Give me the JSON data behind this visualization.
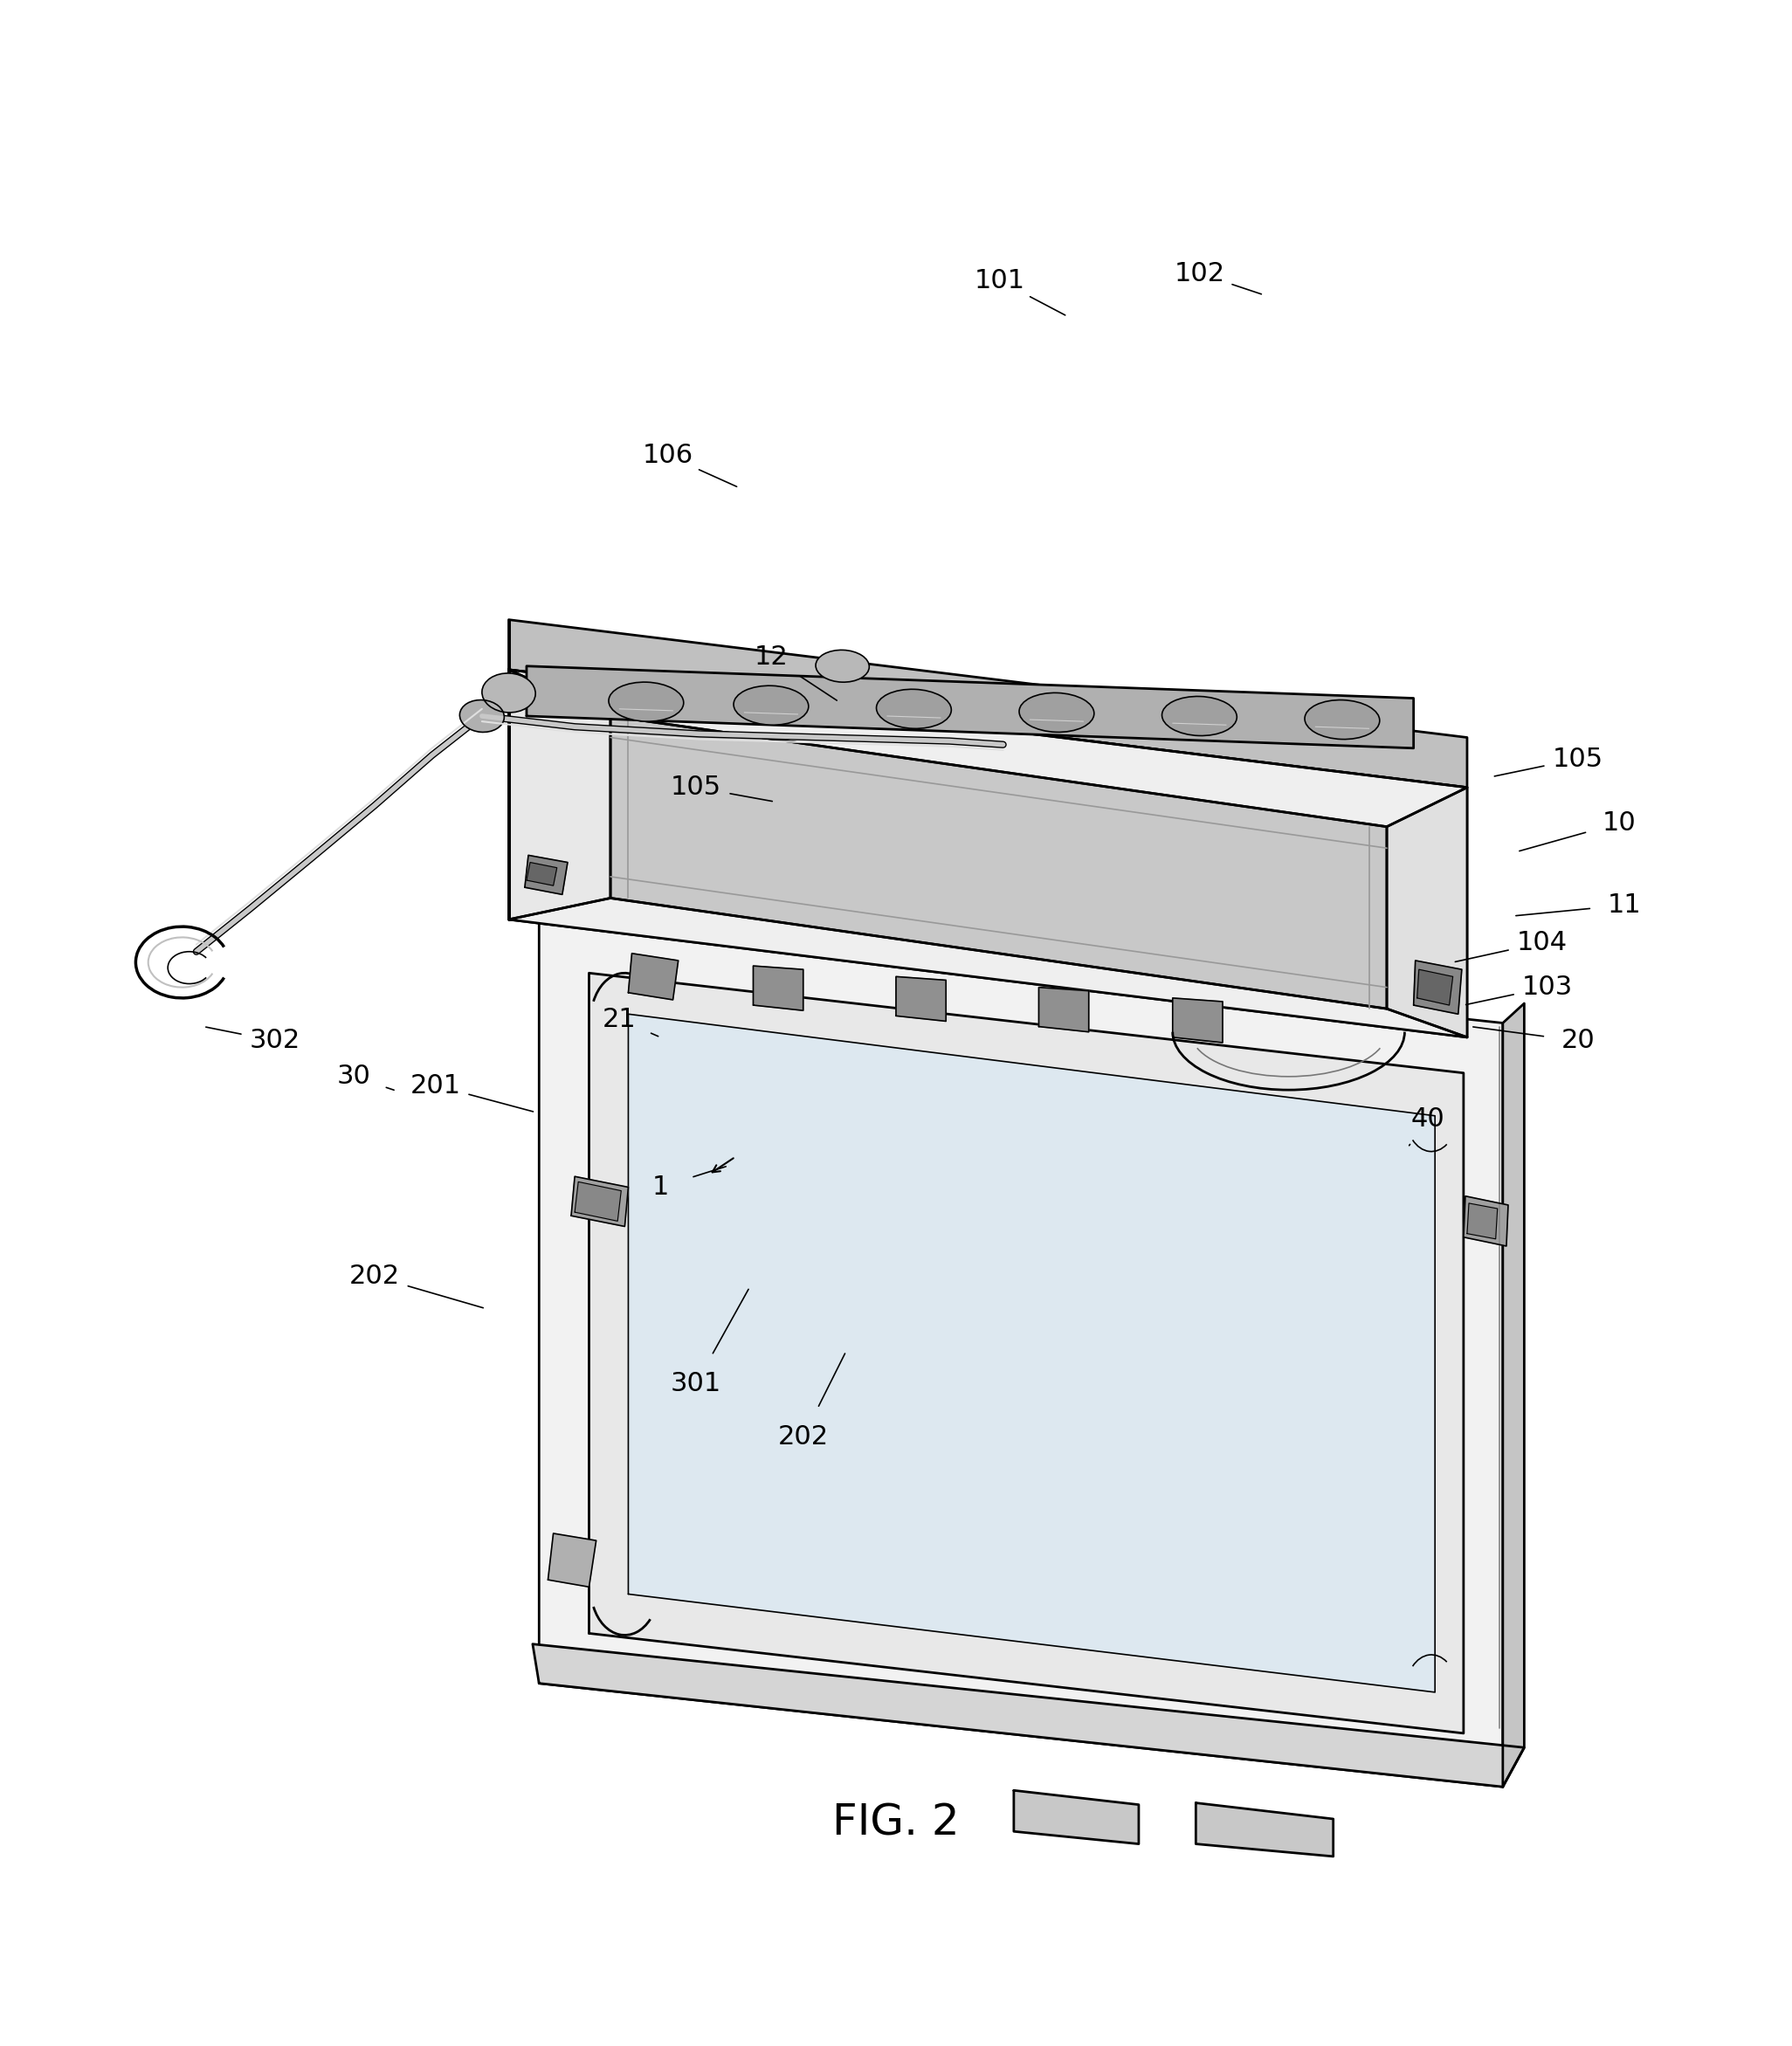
{
  "background_color": "#ffffff",
  "line_color": "#000000",
  "fig_width": 20.52,
  "fig_height": 23.43,
  "title": "FIG. 2",
  "title_fontsize": 36,
  "label_fontsize": 22,
  "lw_main": 2.0,
  "lw_thin": 1.2,
  "lw_thick": 2.5
}
